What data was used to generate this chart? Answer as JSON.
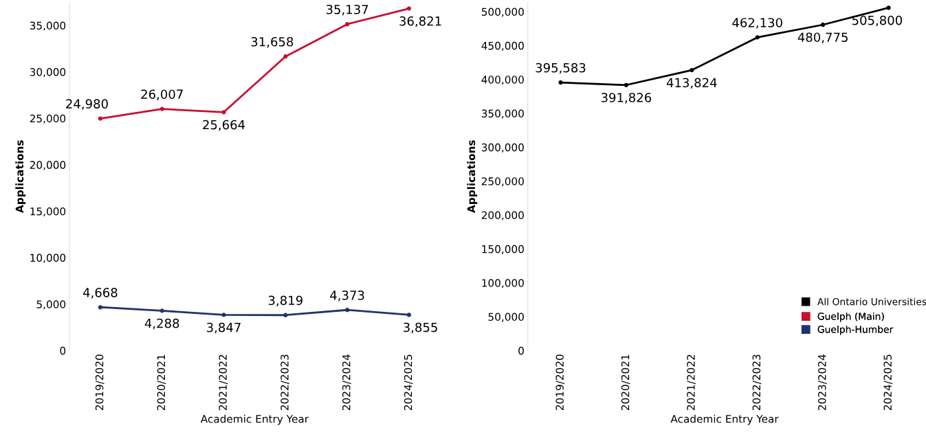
{
  "chart_data": [
    {
      "type": "line",
      "xlabel": "Academic Entry Year",
      "ylabel": "Applications",
      "categories": [
        "2019/2020",
        "2020/2021",
        "2021/2022",
        "2022/2023",
        "2023/2024",
        "2024/2025"
      ],
      "series": [
        {
          "name": "Guelph (Main)",
          "color": "#c8102e",
          "values": [
            24980,
            26007,
            25664,
            31658,
            35137,
            36821
          ],
          "value_labels": [
            "24,980",
            "26,007",
            "25,664",
            "31,658",
            "35,137",
            "36,821"
          ]
        },
        {
          "name": "Guelph-Humber",
          "color": "#1f3370",
          "values": [
            4668,
            4288,
            3847,
            3819,
            4373,
            3855
          ],
          "value_labels": [
            "4,668",
            "4,288",
            "3,847",
            "3,819",
            "4,373",
            "3,855"
          ]
        }
      ],
      "ylim": [
        0,
        37500
      ],
      "yticks": [
        {
          "value": 0,
          "label": "0"
        },
        {
          "value": 5000,
          "label": "5,000"
        },
        {
          "value": 10000,
          "label": "10,000"
        },
        {
          "value": 15000,
          "label": "15,000"
        },
        {
          "value": 20000,
          "label": "20,000"
        },
        {
          "value": 25000,
          "label": "25,000"
        },
        {
          "value": 30000,
          "label": "30,000"
        },
        {
          "value": 35000,
          "label": "35,000"
        }
      ],
      "marker": "circle",
      "line_style": "solid",
      "grid": false,
      "legend": "bottom right"
    },
    {
      "type": "line",
      "xlabel": "Academic Entry Year",
      "ylabel": "Applications",
      "categories": [
        "2019/2020",
        "2020/2021",
        "2021/2022",
        "2022/2023",
        "2023/2024",
        "2024/2025"
      ],
      "series": [
        {
          "name": "All Ontario Universities",
          "color": "#000000",
          "values": [
            395583,
            391826,
            413824,
            462130,
            480775,
            505800
          ],
          "value_labels": [
            "395,583",
            "391,826",
            "413,824",
            "462,130",
            "480,775",
            "505,800"
          ]
        }
      ],
      "ylim": [
        0,
        514000
      ],
      "yticks": [
        {
          "value": 0,
          "label": "0"
        },
        {
          "value": 50000,
          "label": "50,000"
        },
        {
          "value": 100000,
          "label": "100,000"
        },
        {
          "value": 150000,
          "label": "150,000"
        },
        {
          "value": 200000,
          "label": "200,000"
        },
        {
          "value": 250000,
          "label": "250,000"
        },
        {
          "value": 300000,
          "label": "300,000"
        },
        {
          "value": 350000,
          "label": "350,000"
        },
        {
          "value": 400000,
          "label": "400,000"
        },
        {
          "value": 450000,
          "label": "450,000"
        },
        {
          "value": 500000,
          "label": "500,000"
        }
      ],
      "marker": "circle",
      "line_style": "solid",
      "grid": false,
      "legend": "bottom right"
    }
  ]
}
